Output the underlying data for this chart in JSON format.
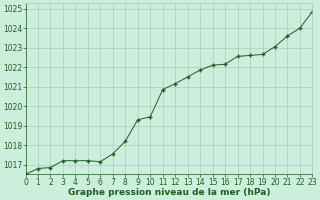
{
  "x": [
    0,
    1,
    2,
    3,
    4,
    5,
    6,
    7,
    8,
    9,
    10,
    11,
    12,
    13,
    14,
    15,
    16,
    17,
    18,
    19,
    20,
    21,
    22,
    23
  ],
  "y": [
    1016.5,
    1016.8,
    1016.85,
    1017.2,
    1017.2,
    1017.2,
    1017.15,
    1017.55,
    1018.2,
    1019.3,
    1019.45,
    1020.85,
    1021.15,
    1021.5,
    1021.85,
    1022.1,
    1022.15,
    1022.55,
    1022.6,
    1022.65,
    1023.05,
    1023.6,
    1024.0,
    1024.85
  ],
  "xlim": [
    0,
    23
  ],
  "ylim": [
    1016.5,
    1025.3
  ],
  "yticks": [
    1017,
    1018,
    1019,
    1020,
    1021,
    1022,
    1023,
    1024,
    1025
  ],
  "xtick_labels": [
    "0",
    "1",
    "2",
    "3",
    "4",
    "5",
    "6",
    "7",
    "8",
    "9",
    "10",
    "11",
    "12",
    "13",
    "14",
    "15",
    "16",
    "17",
    "18",
    "19",
    "20",
    "21",
    "22",
    "23"
  ],
  "line_color": "#1f5e1f",
  "marker_color": "#1f5e1f",
  "bg_color": "#cceedd",
  "grid_color": "#aaccbb",
  "xlabel": "Graphe pression niveau de la mer (hPa)",
  "xlabel_color": "#1f5e1f",
  "tick_color": "#1f5e1f",
  "axis_label_fontsize": 6.5,
  "tick_fontsize": 5.5
}
